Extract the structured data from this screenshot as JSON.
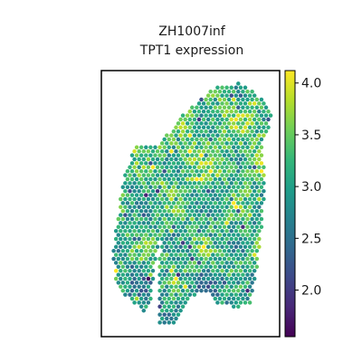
{
  "chart_data": {
    "type": "scatter",
    "title_line1": "ZH1007inf",
    "title_line2": "TPT1 expression",
    "xlabel": "",
    "ylabel": "",
    "colorbar": {
      "colormap": "viridis",
      "range": [
        1.55,
        4.12
      ],
      "ticks": [
        2.0,
        2.5,
        3.0,
        3.5,
        4.0
      ],
      "tick_labels": [
        "2.0",
        "2.5",
        "3.0",
        "3.5",
        "4.0"
      ]
    },
    "colormap_stops": [
      "#440154",
      "#482878",
      "#3e4989",
      "#31688e",
      "#26828e",
      "#1f9e89",
      "#35b779",
      "#6ece58",
      "#b5de2b",
      "#fde725"
    ],
    "grid": false,
    "legend": "colorbar-right",
    "point_color_range_typical": [
      2.6,
      3.9
    ],
    "point_count_estimate": 1400
  }
}
